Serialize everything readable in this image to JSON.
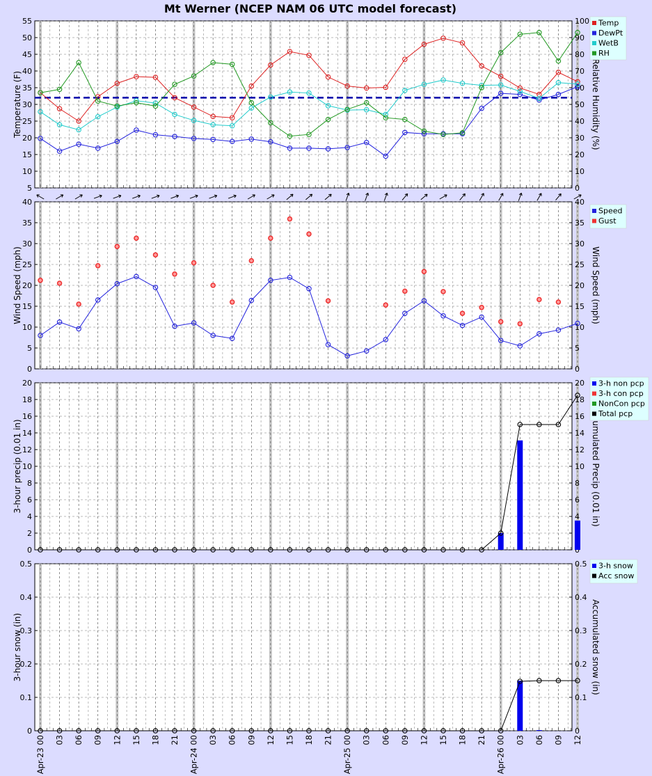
{
  "title": "Mt Werner (NCEP NAM 06 UTC model forecast)",
  "x_ticks": [
    "Apr-23 00",
    "03",
    "06",
    "09",
    "12",
    "15",
    "18",
    "21",
    "Apr-24 00",
    "03",
    "06",
    "09",
    "12",
    "15",
    "18",
    "21",
    "Apr-25 00",
    "03",
    "06",
    "09",
    "12",
    "15",
    "18",
    "21",
    "Apr-26 00",
    "03",
    "06",
    "09",
    "12"
  ],
  "colors": {
    "background": "#dcdcff",
    "temp": "#dd2222",
    "dewpt": "#2222dd",
    "wetb": "#22cccc",
    "rh": "#229922",
    "gust": "#ee3333",
    "bar": "#0000ee",
    "total": "#000000",
    "freezing_line": "#0000aa",
    "legend_bg": "#ddffff"
  },
  "chart_data": [
    {
      "type": "line",
      "ylabel": "Temperature (F)",
      "ylabel_right": "Relative Humidity (%)",
      "ylim": [
        5,
        55
      ],
      "yticks": [
        5,
        10,
        15,
        20,
        25,
        30,
        35,
        40,
        45,
        50,
        55
      ],
      "ylim_right": [
        0,
        100
      ],
      "yticks_right": [
        0,
        10,
        20,
        30,
        40,
        50,
        60,
        70,
        80,
        90,
        100
      ],
      "reference_line": 32,
      "legend": [
        "Temp",
        "DewPt",
        "WetB",
        "RH"
      ],
      "series": [
        {
          "name": "Temp",
          "axis": "left",
          "values": [
            33.5,
            28.7,
            25,
            32.3,
            36.3,
            38.3,
            38.1,
            32,
            29.2,
            26.4,
            26,
            35.5,
            41.8,
            45.8,
            44.7,
            38.2,
            35.5,
            34.9,
            35.1,
            43.5,
            48,
            49.8,
            48.4,
            41.5,
            38.4,
            34.9,
            33,
            39.6,
            36.8
          ]
        },
        {
          "name": "DewPt",
          "axis": "left",
          "values": [
            19.8,
            16,
            18.1,
            16.9,
            18.9,
            22.3,
            20.9,
            20.4,
            19.8,
            19.5,
            18.9,
            19.6,
            18.8,
            16.9,
            16.9,
            16.7,
            17.1,
            18.6,
            14.5,
            21.6,
            21.2,
            21.2,
            21.2,
            28.8,
            33.3,
            33,
            31.3,
            33,
            35.3
          ]
        },
        {
          "name": "WetB",
          "axis": "left",
          "values": [
            27.8,
            23.9,
            22.4,
            26.3,
            29.2,
            31.1,
            30.4,
            27,
            25.2,
            23.9,
            23.6,
            28.9,
            32.2,
            33.7,
            33.4,
            29.6,
            28.3,
            28.4,
            27,
            34.2,
            36,
            37.3,
            36.3,
            35.7,
            35.8,
            33.9,
            31.8,
            36.5,
            36.1
          ]
        },
        {
          "name": "RH",
          "axis": "right",
          "values": [
            57,
            59,
            75,
            52,
            49,
            51,
            49,
            62,
            67,
            75,
            74,
            51,
            39,
            31,
            32,
            41,
            47,
            51,
            42,
            41,
            34,
            32,
            33,
            60,
            81,
            92,
            93,
            76,
            93
          ]
        }
      ]
    },
    {
      "type": "line",
      "ylabel": "Wind Speed (mph)",
      "ylabel_right": "Wind Speed (mph)",
      "ylim": [
        0,
        40
      ],
      "yticks": [
        0,
        5,
        10,
        15,
        20,
        25,
        30,
        35,
        40
      ],
      "legend": [
        "Speed",
        "Gust"
      ],
      "wind_direction_deg": [
        120,
        240,
        240,
        250,
        250,
        250,
        250,
        250,
        250,
        250,
        250,
        240,
        240,
        230,
        230,
        230,
        200,
        200,
        200,
        220,
        230,
        240,
        220,
        210,
        210,
        200,
        210,
        220,
        240
      ],
      "series": [
        {
          "name": "Speed",
          "values": [
            8,
            11.2,
            9.6,
            16.5,
            20.4,
            22.1,
            19.5,
            10.2,
            11,
            8,
            7.3,
            16.4,
            21.2,
            21.9,
            19.2,
            5.8,
            3.1,
            4.3,
            7,
            13.3,
            16.3,
            12.7,
            10.4,
            12.4,
            6.8,
            5.5,
            8.4,
            9.3,
            10.9
          ]
        },
        {
          "name": "Gust",
          "style": "points",
          "values": [
            21.2,
            20.5,
            15.5,
            24.7,
            29.3,
            31.3,
            27.3,
            22.7,
            25.4,
            20,
            16,
            25.9,
            31.3,
            35.9,
            32.3,
            16.3,
            null,
            null,
            15.3,
            18.6,
            23.3,
            18.5,
            13.3,
            14.7,
            11.3,
            10.8,
            16.6,
            16,
            null
          ]
        }
      ]
    },
    {
      "type": "bar",
      "ylabel": "3-hour precip (0.01 in)",
      "ylabel_right": "Accumulated Precip (0.01 in)",
      "ylim": [
        0,
        20
      ],
      "yticks": [
        0,
        2,
        4,
        6,
        8,
        10,
        12,
        14,
        16,
        18,
        20
      ],
      "legend": [
        "3-h non pcp",
        "3-h con pcp",
        "NonCon pcp",
        "Total pcp"
      ],
      "series": [
        {
          "name": "3-h non pcp",
          "style": "bars",
          "values": [
            0,
            0,
            0,
            0,
            0,
            0,
            0,
            0,
            0,
            0,
            0,
            0,
            0,
            0,
            0,
            0,
            0,
            0,
            0,
            0,
            0,
            0,
            0,
            0,
            2,
            13.1,
            0,
            0,
            3.5
          ]
        },
        {
          "name": "Total pcp",
          "style": "line",
          "values": [
            0,
            0,
            0,
            0,
            0,
            0,
            0,
            0,
            0,
            0,
            0,
            0,
            0,
            0,
            0,
            0,
            0,
            0,
            0,
            0,
            0,
            0,
            0,
            0,
            2,
            15,
            15,
            15,
            18.5
          ]
        }
      ]
    },
    {
      "type": "bar",
      "ylabel": "3-hour snow (in)",
      "ylabel_right": "Accumulated snow (in)",
      "ylim": [
        0,
        0.5
      ],
      "yticks": [
        0,
        0.1,
        0.2,
        0.3,
        0.4,
        0.5
      ],
      "legend": [
        "3-h snow",
        "Acc snow"
      ],
      "series": [
        {
          "name": "3-h snow",
          "style": "bars",
          "values": [
            0,
            0,
            0,
            0,
            0,
            0,
            0,
            0,
            0,
            0,
            0,
            0,
            0,
            0,
            0,
            0,
            0,
            0,
            0,
            0,
            0,
            0,
            0,
            0,
            0,
            0.15,
            0.002,
            0,
            0
          ]
        },
        {
          "name": "Acc snow",
          "style": "line",
          "values": [
            0,
            0,
            0,
            0,
            0,
            0,
            0,
            0,
            0,
            0,
            0,
            0,
            0,
            0,
            0,
            0,
            0,
            0,
            0,
            0,
            0,
            0,
            0,
            0,
            0,
            0.148,
            0.15,
            0.15,
            0.15
          ]
        }
      ]
    }
  ]
}
